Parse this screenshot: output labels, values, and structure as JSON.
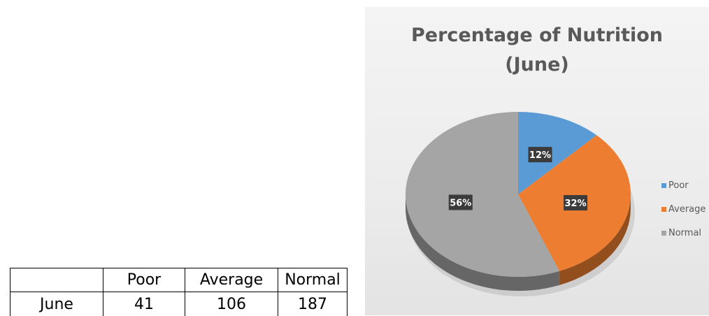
{
  "table": {
    "headers": [
      "",
      "Poor",
      "Average",
      "Normal"
    ],
    "rows": [
      {
        "label": "June",
        "values": [
          "41",
          "106",
          "187"
        ]
      }
    ]
  },
  "chart_data": {
    "type": "pie",
    "title_lines": [
      "Percentage of Nutrition",
      "(June)"
    ],
    "categories": [
      "Poor",
      "Average",
      "Normal"
    ],
    "values": [
      41,
      106,
      187
    ],
    "percent_labels": [
      "12%",
      "32%",
      "56%"
    ],
    "colors": [
      "#5b9bd5",
      "#ed7d31",
      "#a5a5a5"
    ],
    "legend_position": "right",
    "style": "3d"
  }
}
